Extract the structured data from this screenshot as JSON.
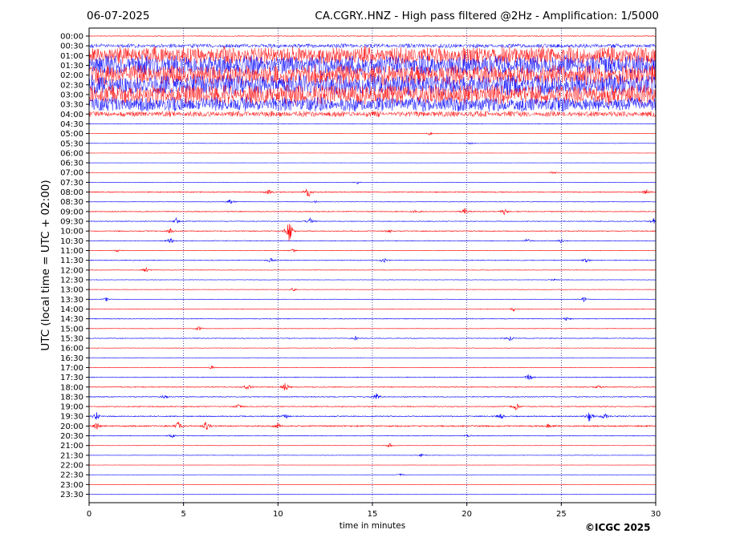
{
  "header": {
    "date": "06-07-2025",
    "title": "CA.CGRY..HNZ - High pass filtered @2Hz - Amplification: 1/5000"
  },
  "footer": {
    "copyright": "©ICGC 2025"
  },
  "chart_data": {
    "type": "line",
    "title": "CA.CGRY..HNZ - High pass filtered @2Hz - Amplification: 1/5000",
    "xlabel": "time in minutes",
    "ylabel": "UTC (local time = UTC + 02:00)",
    "xlim": [
      0,
      30
    ],
    "x_ticks": [
      0,
      5,
      10,
      15,
      20,
      25,
      30
    ],
    "vertical_grid_minutes": [
      5,
      10,
      15,
      20,
      25
    ],
    "grid": "dotted vertical lines",
    "legend": "none",
    "colors": {
      "odd_traces": "#ff0000",
      "even_traces": "#0000ff"
    },
    "rows": [
      {
        "label": "00:00",
        "activity": 0.4,
        "bursts": []
      },
      {
        "label": "00:30",
        "activity": 3,
        "bursts": []
      },
      {
        "label": "01:00",
        "activity": 12,
        "bursts": []
      },
      {
        "label": "01:30",
        "activity": 14,
        "bursts": []
      },
      {
        "label": "02:00",
        "activity": 14,
        "bursts": []
      },
      {
        "label": "02:30",
        "activity": 14,
        "bursts": []
      },
      {
        "label": "03:00",
        "activity": 14,
        "bursts": []
      },
      {
        "label": "03:30",
        "activity": 10,
        "bursts": []
      },
      {
        "label": "04:00",
        "activity": 4,
        "bursts": []
      },
      {
        "label": "04:30",
        "activity": 0.3,
        "bursts": []
      },
      {
        "label": "05:00",
        "activity": 0.2,
        "bursts": [
          [
            18.0,
            2
          ]
        ]
      },
      {
        "label": "05:30",
        "activity": 0.2,
        "bursts": [
          [
            20.2,
            2
          ]
        ]
      },
      {
        "label": "06:00",
        "activity": 0.1,
        "bursts": []
      },
      {
        "label": "06:30",
        "activity": 0.1,
        "bursts": []
      },
      {
        "label": "07:00",
        "activity": 0.15,
        "bursts": [
          [
            24.6,
            2
          ]
        ]
      },
      {
        "label": "07:30",
        "activity": 0.2,
        "bursts": [
          [
            14.2,
            2
          ]
        ]
      },
      {
        "label": "08:00",
        "activity": 0.6,
        "bursts": [
          [
            9.5,
            3
          ],
          [
            11.6,
            8
          ],
          [
            29.5,
            4
          ]
        ]
      },
      {
        "label": "08:30",
        "activity": 0.3,
        "bursts": [
          [
            7.5,
            4
          ],
          [
            12.0,
            2
          ]
        ]
      },
      {
        "label": "09:00",
        "activity": 0.5,
        "bursts": [
          [
            17.3,
            4
          ],
          [
            19.9,
            4
          ],
          [
            22.0,
            4
          ]
        ]
      },
      {
        "label": "09:30",
        "activity": 0.4,
        "bursts": [
          [
            4.6,
            4
          ],
          [
            11.7,
            5
          ],
          [
            29.9,
            4
          ]
        ]
      },
      {
        "label": "10:00",
        "activity": 0.5,
        "bursts": [
          [
            4.3,
            3
          ],
          [
            10.6,
            16
          ],
          [
            15.9,
            2
          ]
        ]
      },
      {
        "label": "10:30",
        "activity": 0.4,
        "bursts": [
          [
            4.3,
            4
          ],
          [
            23.2,
            3
          ],
          [
            25.0,
            3
          ]
        ]
      },
      {
        "label": "11:00",
        "activity": 0.3,
        "bursts": [
          [
            1.5,
            2
          ],
          [
            10.8,
            2
          ]
        ]
      },
      {
        "label": "11:30",
        "activity": 0.4,
        "bursts": [
          [
            9.6,
            3
          ],
          [
            15.6,
            3
          ],
          [
            26.3,
            3
          ]
        ]
      },
      {
        "label": "12:00",
        "activity": 0.3,
        "bursts": [
          [
            3.0,
            4
          ]
        ]
      },
      {
        "label": "12:30",
        "activity": 0.25,
        "bursts": [
          [
            24.6,
            2
          ]
        ]
      },
      {
        "label": "13:00",
        "activity": 0.25,
        "bursts": [
          [
            10.8,
            2
          ]
        ]
      },
      {
        "label": "13:30",
        "activity": 0.25,
        "bursts": [
          [
            0.9,
            3
          ],
          [
            26.2,
            3
          ]
        ]
      },
      {
        "label": "14:00",
        "activity": 0.3,
        "bursts": [
          [
            22.5,
            3
          ]
        ]
      },
      {
        "label": "14:30",
        "activity": 0.4,
        "bursts": [
          [
            25.3,
            3
          ]
        ]
      },
      {
        "label": "15:00",
        "activity": 0.3,
        "bursts": [
          [
            5.8,
            3
          ]
        ]
      },
      {
        "label": "15:30",
        "activity": 0.4,
        "bursts": [
          [
            14.1,
            3
          ],
          [
            22.3,
            4
          ]
        ]
      },
      {
        "label": "16:00",
        "activity": 0.25,
        "bursts": []
      },
      {
        "label": "16:30",
        "activity": 0.25,
        "bursts": []
      },
      {
        "label": "17:00",
        "activity": 0.3,
        "bursts": [
          [
            6.5,
            2
          ]
        ]
      },
      {
        "label": "17:30",
        "activity": 0.4,
        "bursts": [
          [
            23.3,
            6
          ]
        ]
      },
      {
        "label": "18:00",
        "activity": 0.5,
        "bursts": [
          [
            8.4,
            5
          ],
          [
            10.4,
            6
          ],
          [
            27.0,
            3
          ]
        ]
      },
      {
        "label": "18:30",
        "activity": 0.5,
        "bursts": [
          [
            15.2,
            5
          ],
          [
            4.0,
            3
          ]
        ]
      },
      {
        "label": "19:00",
        "activity": 0.5,
        "bursts": [
          [
            7.9,
            3
          ],
          [
            22.6,
            5
          ]
        ]
      },
      {
        "label": "19:30",
        "activity": 0.6,
        "bursts": [
          [
            0.4,
            5
          ],
          [
            10.4,
            4
          ],
          [
            21.8,
            4
          ],
          [
            26.5,
            8
          ],
          [
            27.3,
            5
          ]
        ]
      },
      {
        "label": "20:00",
        "activity": 0.8,
        "bursts": [
          [
            0.4,
            5
          ],
          [
            4.7,
            6
          ],
          [
            6.2,
            7
          ],
          [
            10.0,
            4
          ],
          [
            24.3,
            2
          ]
        ]
      },
      {
        "label": "20:30",
        "activity": 0.4,
        "bursts": [
          [
            4.4,
            3
          ],
          [
            20.0,
            2
          ]
        ]
      },
      {
        "label": "21:00",
        "activity": 0.25,
        "bursts": [
          [
            15.9,
            3
          ]
        ]
      },
      {
        "label": "21:30",
        "activity": 0.25,
        "bursts": [
          [
            17.6,
            2
          ]
        ]
      },
      {
        "label": "22:00",
        "activity": 0.1,
        "bursts": []
      },
      {
        "label": "22:30",
        "activity": 0.15,
        "bursts": [
          [
            16.5,
            2
          ]
        ]
      },
      {
        "label": "23:00",
        "activity": 0.1,
        "bursts": []
      },
      {
        "label": "23:30",
        "activity": 0.1,
        "bursts": []
      }
    ]
  }
}
